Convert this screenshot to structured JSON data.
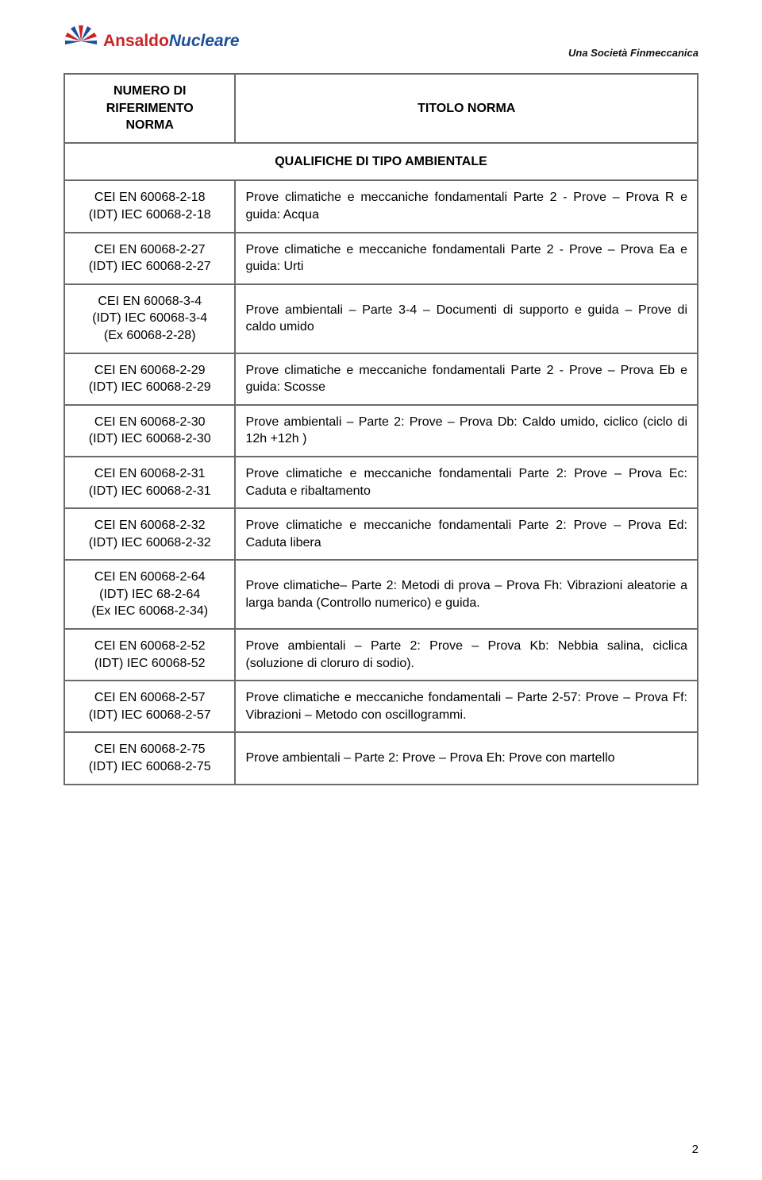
{
  "header": {
    "logo_part1": "Ansaldo",
    "logo_part2": "Nucleare",
    "tagline": "Una Società Finmeccanica"
  },
  "table": {
    "head_col1_line1": "NUMERO DI",
    "head_col1_line2": "RIFERIMENTO",
    "head_col1_line3": "NORMA",
    "head_col2": "TITOLO NORMA",
    "section_title": "QUALIFICHE DI TIPO AMBIENTALE",
    "rows": [
      {
        "ref1": "CEI EN 60068-2-18",
        "ref2": "(IDT) IEC 60068-2-18",
        "ref3": "",
        "desc": "Prove climatiche e meccaniche fondamentali Parte 2 - Prove – Prova R e guida: Acqua"
      },
      {
        "ref1": "CEI EN 60068-2-27",
        "ref2": "(IDT) IEC 60068-2-27",
        "ref3": "",
        "desc": "Prove climatiche e meccaniche fondamentali Parte 2 - Prove – Prova Ea e guida: Urti"
      },
      {
        "ref1": "CEI EN 60068-3-4",
        "ref2": "(IDT) IEC 60068-3-4",
        "ref3": "(Ex 60068-2-28)",
        "desc": "Prove ambientali – Parte 3-4 – Documenti di supporto e guida – Prove di caldo umido"
      },
      {
        "ref1": "CEI EN 60068-2-29",
        "ref2": "(IDT) IEC 60068-2-29",
        "ref3": "",
        "desc": "Prove climatiche e meccaniche fondamentali Parte 2 - Prove – Prova Eb e guida: Scosse"
      },
      {
        "ref1": "CEI EN 60068-2-30",
        "ref2": "(IDT) IEC 60068-2-30",
        "ref3": "",
        "desc": "Prove ambientali – Parte 2: Prove – Prova Db: Caldo umido, ciclico (ciclo di 12h +12h )"
      },
      {
        "ref1": "CEI EN 60068-2-31",
        "ref2": "(IDT) IEC 60068-2-31",
        "ref3": "",
        "desc": "Prove climatiche e meccaniche fondamentali Parte 2: Prove – Prova Ec: Caduta e ribaltamento"
      },
      {
        "ref1": "CEI EN 60068-2-32",
        "ref2": "(IDT) IEC 60068-2-32",
        "ref3": "",
        "desc": "Prove climatiche e meccaniche fondamentali Parte 2: Prove – Prova Ed: Caduta libera"
      },
      {
        "ref1": "CEI EN 60068-2-64",
        "ref2": "(IDT) IEC 68-2-64",
        "ref3": "(Ex IEC 60068-2-34)",
        "desc": "Prove climatiche– Parte 2: Metodi di prova – Prova Fh: Vibrazioni aleatorie a larga banda (Controllo numerico) e guida."
      },
      {
        "ref1": "CEI EN 60068-2-52",
        "ref2": "(IDT) IEC 60068-52",
        "ref3": "",
        "desc": "Prove ambientali – Parte 2: Prove – Prova Kb: Nebbia salina, ciclica (soluzione di cloruro di sodio)."
      },
      {
        "ref1": "CEI EN 60068-2-57",
        "ref2": "(IDT) IEC 60068-2-57",
        "ref3": "",
        "desc": "Prove climatiche e meccaniche fondamentali – Parte 2-57: Prove – Prova Ff: Vibrazioni – Metodo con oscillogrammi."
      },
      {
        "ref1": "CEI EN 60068-2-75",
        "ref2": "(IDT) IEC 60068-2-75",
        "ref3": "",
        "desc": "Prove ambientali – Parte 2: Prove – Prova Eh: Prove con martello"
      }
    ]
  },
  "page_number": "2"
}
